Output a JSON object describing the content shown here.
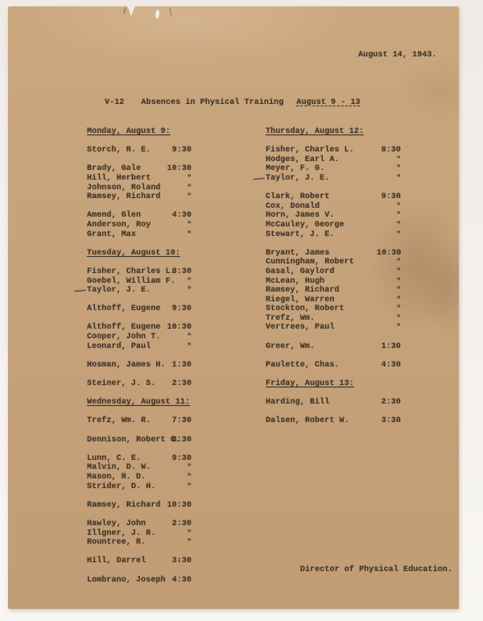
{
  "doc": {
    "date": "August 14, 1943.",
    "title_prefix": "V-12",
    "title_main": "Absences in Physical Training",
    "title_range": "August 9 - 13",
    "signature": "Director of Physical Education.",
    "stray_mark": "'"
  },
  "colors": {
    "paper": "#c7a37c",
    "ink": "#3e352a",
    "stain": "#8a6440",
    "backdrop": "#f3efeb"
  },
  "columns": [
    {
      "side": "left",
      "sections": [
        {
          "heading": "Monday, August 9:",
          "groups": [
            [
              {
                "name": "Storch, R. E.",
                "time": "9:30"
              }
            ],
            [
              {
                "name": "Brady, Gale",
                "time": "10:30"
              },
              {
                "name": "Hill, Herbert",
                "time": "\""
              },
              {
                "name": "Johnson, Roland",
                "time": "\""
              },
              {
                "name": "Ramsey, Richard",
                "time": "\""
              }
            ],
            [
              {
                "name": "Amend, Glen",
                "time": "4:30"
              },
              {
                "name": "Anderson, Roy",
                "time": "\""
              },
              {
                "name": "Grant, Max",
                "time": "\""
              }
            ]
          ]
        },
        {
          "heading": "Tuesday, August 10:",
          "groups": [
            [
              {
                "name": "Fisher, Charles L.",
                "time": "8:30"
              },
              {
                "name": "Goebel, William F.",
                "time": "\""
              },
              {
                "name": "Taylor, J. E.",
                "time": "\"",
                "mark": true
              }
            ],
            [
              {
                "name": "Althoff, Eugene",
                "time": "9:30"
              }
            ],
            [
              {
                "name": "Althoff, Eugene",
                "time": "10:30"
              },
              {
                "name": "Cooper, John T.",
                "time": "\""
              },
              {
                "name": "Leonard, Paul",
                "time": "\""
              }
            ],
            [
              {
                "name": "Hosman, James H.",
                "time": "1:30"
              }
            ],
            [
              {
                "name": "Steiner, J. S.",
                "time": "2:30"
              }
            ]
          ]
        },
        {
          "heading": "Wednesday, August 11:",
          "groups": [
            [
              {
                "name": "Trefz, Wm. R.",
                "time": "7:30"
              }
            ],
            [
              {
                "name": "Dennison, Robert C.",
                "time": "8:30"
              }
            ],
            [
              {
                "name": "Lunn, C. E.",
                "time": "9:30"
              },
              {
                "name": "Malvin, D. W.",
                "time": "\""
              },
              {
                "name": "Mason, R. D.",
                "time": "\""
              },
              {
                "name": "Strider, D. H.",
                "time": "\""
              }
            ],
            [
              {
                "name": "Ramsey, Richard",
                "time": "10:30"
              }
            ],
            [
              {
                "name": "Hawley, John",
                "time": "2:30"
              },
              {
                "name": "Illgner, J. R.",
                "time": "\""
              },
              {
                "name": "Rountree, R.",
                "time": "\""
              }
            ],
            [
              {
                "name": "Hill, Darrel",
                "time": "3:30"
              }
            ],
            [
              {
                "name": "Lombrano, Joseph",
                "time": "4:30"
              }
            ]
          ]
        }
      ]
    },
    {
      "side": "right",
      "sections": [
        {
          "heading": "Thursday, August 12:",
          "groups": [
            [
              {
                "name": "Fisher, Charles L.",
                "time": "8:30"
              },
              {
                "name": "Hodges, Earl A.",
                "time": "\""
              },
              {
                "name": "Meyer, F. G.",
                "time": "\""
              },
              {
                "name": "Taylor, J. E.",
                "time": "\"",
                "mark": true
              }
            ],
            [
              {
                "name": "Clark, Robert",
                "time": "9:30"
              },
              {
                "name": "Cox, Donald",
                "time": "\""
              },
              {
                "name": "Horn, James V.",
                "time": "\""
              },
              {
                "name": "McCauley, George",
                "time": "\""
              },
              {
                "name": "Stewart, J. E.",
                "time": "\""
              }
            ],
            [
              {
                "name": "Bryant, James",
                "time": "10:30"
              },
              {
                "name": "Cunningham, Robert",
                "time": "\""
              },
              {
                "name": "Gasal, Gaylord",
                "time": "\""
              },
              {
                "name": "McLean, Hugh",
                "time": "\""
              },
              {
                "name": "Ramsey, Richard",
                "time": "\""
              },
              {
                "name": "Riegel, Warren",
                "time": "\""
              },
              {
                "name": "Stockton, Robert",
                "time": "\""
              },
              {
                "name": "Trefz, Wm.",
                "time": "\""
              },
              {
                "name": "Vertrees, Paul",
                "time": "\""
              }
            ],
            [
              {
                "name": "Greer, Wm.",
                "time": "1:30"
              }
            ],
            [
              {
                "name": "Paulette, Chas.",
                "time": "4:30"
              }
            ]
          ]
        },
        {
          "heading": "Friday, August 13:",
          "groups": [
            [
              {
                "name": "Harding, Bill",
                "time": "2:30"
              }
            ],
            [
              {
                "name": "Dalsen, Robert W.",
                "time": "3:30"
              }
            ]
          ]
        }
      ]
    }
  ]
}
